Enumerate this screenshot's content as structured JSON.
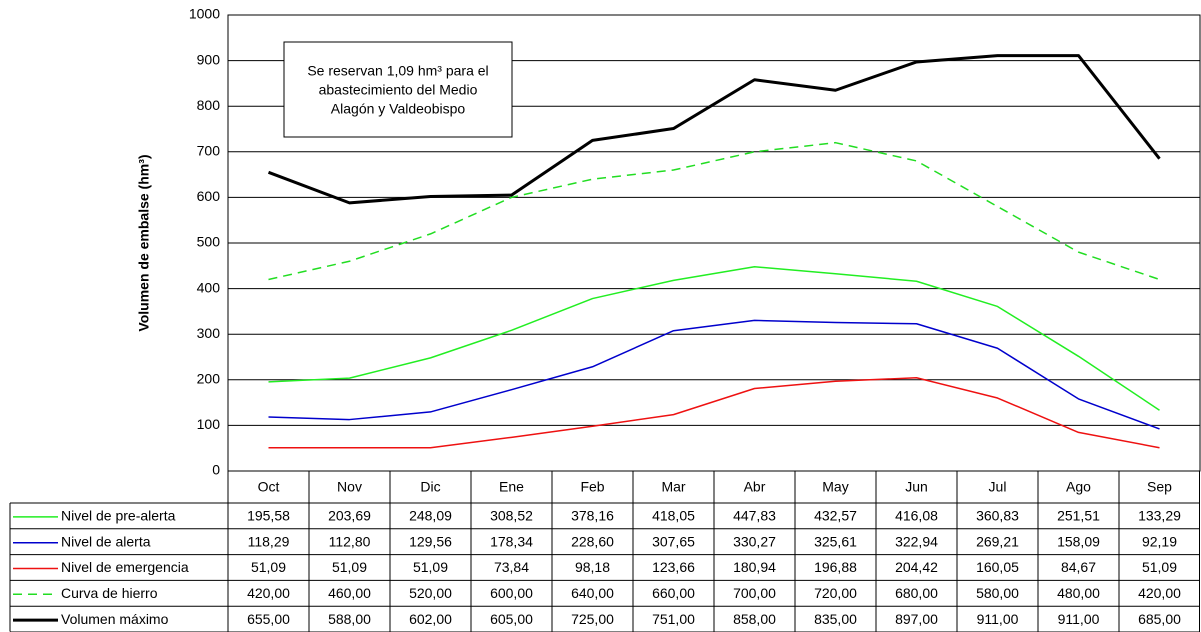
{
  "chart_data": {
    "type": "line",
    "y_label": "Volumen de embalse (hm³)",
    "annotation": [
      "Se reservan 1,09 hm³ para el",
      "abastecimiento del Medio",
      "Alagón y Valdeobispo"
    ],
    "categories": [
      "Oct",
      "Nov",
      "Dic",
      "Ene",
      "Feb",
      "Mar",
      "Abr",
      "May",
      "Jun",
      "Jul",
      "Ago",
      "Sep"
    ],
    "ylim": [
      0,
      1000
    ],
    "yticks": [
      0,
      100,
      200,
      300,
      400,
      500,
      600,
      700,
      800,
      900,
      1000
    ],
    "grid": true,
    "series": [
      {
        "name": "Nivel de pre-alerta",
        "color": "#22ee22",
        "style": "solid",
        "values": [
          195.58,
          203.69,
          248.09,
          308.52,
          378.16,
          418.05,
          447.83,
          432.57,
          416.08,
          360.83,
          251.51,
          133.29
        ],
        "value_labels": [
          "195,58",
          "203,69",
          "248,09",
          "308,52",
          "378,16",
          "418,05",
          "447,83",
          "432,57",
          "416,08",
          "360,83",
          "251,51",
          "133,29"
        ]
      },
      {
        "name": "Nivel de alerta",
        "color": "#0000cc",
        "style": "solid",
        "values": [
          118.29,
          112.8,
          129.56,
          178.34,
          228.6,
          307.65,
          330.27,
          325.61,
          322.94,
          269.21,
          158.09,
          92.19
        ],
        "value_labels": [
          "118,29",
          "112,80",
          "129,56",
          "178,34",
          "228,60",
          "307,65",
          "330,27",
          "325,61",
          "322,94",
          "269,21",
          "158,09",
          "92,19"
        ]
      },
      {
        "name": "Nivel de emergencia",
        "color": "#ee1111",
        "style": "solid",
        "values": [
          51.09,
          51.09,
          51.09,
          73.84,
          98.18,
          123.66,
          180.94,
          196.88,
          204.42,
          160.05,
          84.67,
          51.09
        ],
        "value_labels": [
          "51,09",
          "51,09",
          "51,09",
          "73,84",
          "98,18",
          "123,66",
          "180,94",
          "196,88",
          "204,42",
          "160,05",
          "84,67",
          "51,09"
        ]
      },
      {
        "name": "Curva de hierro",
        "color": "#22dd22",
        "style": "dashed",
        "values": [
          420,
          460,
          520,
          600,
          640,
          660,
          700,
          720,
          680,
          580,
          480,
          420
        ],
        "value_labels": [
          "420,00",
          "460,00",
          "520,00",
          "600,00",
          "640,00",
          "660,00",
          "700,00",
          "720,00",
          "680,00",
          "580,00",
          "480,00",
          "420,00"
        ]
      },
      {
        "name": "Volumen máximo",
        "color": "#000000",
        "style": "bold",
        "values": [
          655,
          588,
          602,
          605,
          725,
          751,
          858,
          835,
          897,
          911,
          911,
          685
        ],
        "value_labels": [
          "655,00",
          "588,00",
          "602,00",
          "605,00",
          "725,00",
          "751,00",
          "858,00",
          "835,00",
          "897,00",
          "911,00",
          "911,00",
          "685,00"
        ]
      }
    ]
  }
}
